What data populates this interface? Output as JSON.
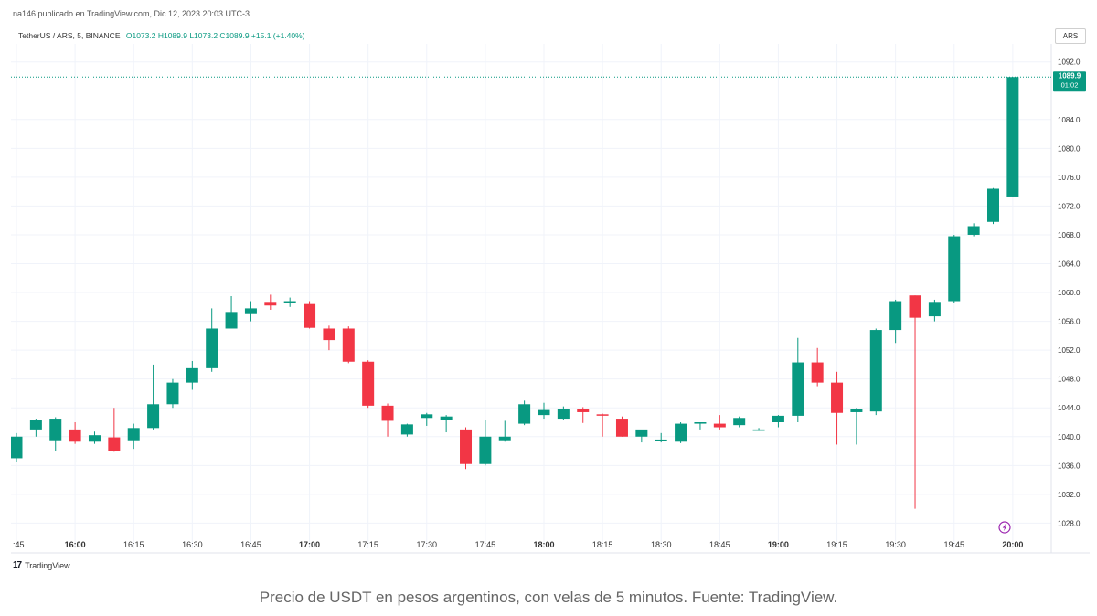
{
  "header": {
    "published": "na146 publicado en TradingView.com, Dic 12, 2023 20:03 UTC-3",
    "symbol": "TetherUS / ARS, 5, BINANCE",
    "ohlc": "O1073.2  H1089.9  L1073.2  C1089.9  +15.1 (+1.40%)",
    "currency": "ARS"
  },
  "last_price": {
    "value": "1089.9",
    "countdown": "01:02",
    "color": "#089981"
  },
  "colors": {
    "up": "#089981",
    "down": "#F23645",
    "axis_text": "#333333"
  },
  "footer": {
    "brand": "TradingView",
    "logo_icon": "tradingview-logo-icon"
  },
  "caption": "Precio de USDT en pesos argentinos, con velas de 5 minutos. Fuente: TradingView.",
  "chart_data": {
    "type": "candlestick",
    "ylim": [
      1024.5,
      1094.5
    ],
    "y_ticks": [
      "1028.0",
      "1032.0",
      "1036.0",
      "1040.0",
      "1044.0",
      "1048.0",
      "1052.0",
      "1056.0",
      "1060.0",
      "1064.0",
      "1068.0",
      "1072.0",
      "1076.0",
      "1080.0",
      "1084.0",
      "1092.0"
    ],
    "x_ticks": [
      ":45",
      "16:00",
      "16:15",
      "16:30",
      "16:45",
      "17:00",
      "17:15",
      "17:30",
      "17:45",
      "18:00",
      "18:15",
      "18:30",
      "18:45",
      "19:00",
      "19:15",
      "19:30",
      "19:45",
      "20:00"
    ],
    "x_tick_bold": [
      false,
      true,
      false,
      false,
      false,
      true,
      false,
      false,
      false,
      true,
      false,
      false,
      false,
      true,
      false,
      false,
      false,
      true
    ],
    "candles": [
      {
        "o": 1037.0,
        "h": 1040.5,
        "l": 1036.5,
        "c": 1040.0
      },
      {
        "o": 1041.0,
        "h": 1042.5,
        "l": 1040.0,
        "c": 1042.3
      },
      {
        "o": 1039.5,
        "h": 1042.7,
        "l": 1038.0,
        "c": 1042.5
      },
      {
        "o": 1041.0,
        "h": 1042.0,
        "l": 1039.0,
        "c": 1039.3
      },
      {
        "o": 1039.3,
        "h": 1040.7,
        "l": 1039.0,
        "c": 1040.2
      },
      {
        "o": 1039.9,
        "h": 1044.0,
        "l": 1037.9,
        "c": 1038.0
      },
      {
        "o": 1039.5,
        "h": 1041.8,
        "l": 1038.3,
        "c": 1041.2
      },
      {
        "o": 1041.2,
        "h": 1050.0,
        "l": 1041.0,
        "c": 1044.5
      },
      {
        "o": 1044.5,
        "h": 1048.0,
        "l": 1044.0,
        "c": 1047.5
      },
      {
        "o": 1047.5,
        "h": 1050.5,
        "l": 1046.5,
        "c": 1049.5
      },
      {
        "o": 1049.5,
        "h": 1057.8,
        "l": 1049.0,
        "c": 1055.0
      },
      {
        "o": 1055.0,
        "h": 1059.5,
        "l": 1055.0,
        "c": 1057.3
      },
      {
        "o": 1057.0,
        "h": 1058.8,
        "l": 1056.0,
        "c": 1057.8
      },
      {
        "o": 1058.7,
        "h": 1059.7,
        "l": 1057.6,
        "c": 1058.2
      },
      {
        "o": 1058.6,
        "h": 1059.3,
        "l": 1058.0,
        "c": 1058.8
      },
      {
        "o": 1058.4,
        "h": 1058.8,
        "l": 1055.0,
        "c": 1055.1
      },
      {
        "o": 1055.0,
        "h": 1055.4,
        "l": 1052.0,
        "c": 1053.4
      },
      {
        "o": 1055.0,
        "h": 1055.3,
        "l": 1050.2,
        "c": 1050.4
      },
      {
        "o": 1050.4,
        "h": 1050.6,
        "l": 1044.0,
        "c": 1044.3
      },
      {
        "o": 1044.3,
        "h": 1044.6,
        "l": 1040.0,
        "c": 1042.2
      },
      {
        "o": 1040.3,
        "h": 1041.8,
        "l": 1040.0,
        "c": 1041.7
      },
      {
        "o": 1042.6,
        "h": 1043.3,
        "l": 1041.5,
        "c": 1043.1
      },
      {
        "o": 1042.3,
        "h": 1043.0,
        "l": 1040.6,
        "c": 1042.8
      },
      {
        "o": 1041.0,
        "h": 1041.3,
        "l": 1035.5,
        "c": 1036.2
      },
      {
        "o": 1036.2,
        "h": 1042.3,
        "l": 1036.0,
        "c": 1040.0
      },
      {
        "o": 1039.5,
        "h": 1042.2,
        "l": 1039.3,
        "c": 1040.0
      },
      {
        "o": 1041.8,
        "h": 1045.0,
        "l": 1041.6,
        "c": 1044.5
      },
      {
        "o": 1043.0,
        "h": 1044.7,
        "l": 1042.5,
        "c": 1043.7
      },
      {
        "o": 1042.5,
        "h": 1044.2,
        "l": 1042.3,
        "c": 1043.8
      },
      {
        "o": 1043.9,
        "h": 1044.1,
        "l": 1041.9,
        "c": 1043.4
      },
      {
        "o": 1043.1,
        "h": 1043.2,
        "l": 1040.0,
        "c": 1043.0
      },
      {
        "o": 1042.5,
        "h": 1042.8,
        "l": 1040.0,
        "c": 1040.0
      },
      {
        "o": 1040.0,
        "h": 1040.8,
        "l": 1039.2,
        "c": 1041.0
      },
      {
        "o": 1039.5,
        "h": 1040.5,
        "l": 1039.2,
        "c": 1039.6
      },
      {
        "o": 1039.3,
        "h": 1042.0,
        "l": 1039.1,
        "c": 1041.8
      },
      {
        "o": 1041.8,
        "h": 1042.0,
        "l": 1041.0,
        "c": 1042.0
      },
      {
        "o": 1041.8,
        "h": 1043.0,
        "l": 1041.0,
        "c": 1041.3
      },
      {
        "o": 1041.6,
        "h": 1042.8,
        "l": 1041.3,
        "c": 1042.6
      },
      {
        "o": 1040.9,
        "h": 1041.2,
        "l": 1040.8,
        "c": 1041.0
      },
      {
        "o": 1042.0,
        "h": 1043.0,
        "l": 1041.3,
        "c": 1042.9
      },
      {
        "o": 1042.9,
        "h": 1053.7,
        "l": 1042.0,
        "c": 1050.3
      },
      {
        "o": 1050.3,
        "h": 1052.3,
        "l": 1047.0,
        "c": 1047.5
      },
      {
        "o": 1047.5,
        "h": 1049.0,
        "l": 1038.9,
        "c": 1043.3
      },
      {
        "o": 1043.4,
        "h": 1044.0,
        "l": 1038.9,
        "c": 1043.9
      },
      {
        "o": 1043.5,
        "h": 1055.0,
        "l": 1043.0,
        "c": 1054.8
      },
      {
        "o": 1054.8,
        "h": 1059.0,
        "l": 1053.0,
        "c": 1058.8
      },
      {
        "o": 1059.6,
        "h": 1059.6,
        "l": 1030.0,
        "c": 1056.5
      },
      {
        "o": 1056.7,
        "h": 1059.0,
        "l": 1056.0,
        "c": 1058.7
      },
      {
        "o": 1058.8,
        "h": 1068.0,
        "l": 1058.5,
        "c": 1067.8
      },
      {
        "o": 1068.0,
        "h": 1069.6,
        "l": 1067.8,
        "c": 1069.2
      },
      {
        "o": 1069.8,
        "h": 1074.5,
        "l": 1069.5,
        "c": 1074.4
      },
      {
        "o": 1073.2,
        "h": 1089.9,
        "l": 1073.2,
        "c": 1089.9
      }
    ]
  }
}
